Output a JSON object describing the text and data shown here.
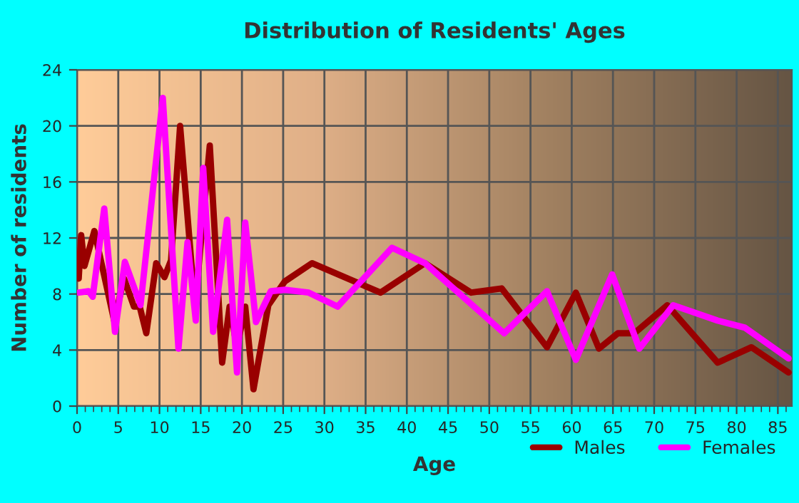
{
  "chart_data": {
    "type": "line",
    "title": "Distribution of Residents' Ages",
    "xlabel": "Age",
    "ylabel": "Number of residents",
    "xlim": [
      0,
      86.7
    ],
    "xticks": [
      0,
      5,
      10,
      15,
      20,
      25,
      30,
      35,
      40,
      45,
      50,
      55,
      60,
      65,
      70,
      75,
      80,
      85
    ],
    "ylim": [
      0,
      24
    ],
    "yticks": [
      0,
      4,
      8,
      12,
      16,
      20,
      24
    ],
    "grid": true,
    "legend": "bottom right",
    "line_style": "solid",
    "series": [
      {
        "name": "Males",
        "color": "#990000",
        "x": [
          0.2,
          0.5,
          0.9,
          2.1,
          4.5,
          5.7,
          6.9,
          7.6,
          8.4,
          9.6,
          10.6,
          11.4,
          12.5,
          14.3,
          16.1,
          17.6,
          18.5,
          19.4,
          20.4,
          21.4,
          23.2,
          25.2,
          28.5,
          36.8,
          42.2,
          47.8,
          51.5,
          57,
          60.5,
          63.3,
          65.6,
          67.6,
          71.6,
          77.7,
          81.8,
          86.3
        ],
        "values": [
          9.1,
          12.2,
          10,
          12.5,
          6.1,
          9.1,
          7.1,
          7.1,
          5.2,
          10.2,
          9.2,
          10.4,
          20,
          7.1,
          18.6,
          3.1,
          7.1,
          4.2,
          7.1,
          1.2,
          7.2,
          8.9,
          10.2,
          8.1,
          10.2,
          8.1,
          8.4,
          4.2,
          8.1,
          4.1,
          5.2,
          5.2,
          7.2,
          3.1,
          4.2,
          2.4
        ]
      },
      {
        "name": "Females",
        "color": "#ff00ff",
        "x": [
          0.2,
          1.4,
          1.9,
          3.3,
          4.6,
          5.8,
          7.7,
          10.4,
          12.3,
          13.4,
          14.4,
          15.3,
          16.5,
          18.2,
          19.4,
          20.4,
          21.7,
          23.5,
          25.2,
          28.1,
          31.6,
          38.2,
          42.2,
          51.8,
          57,
          60.5,
          64.9,
          68.2,
          72.3,
          77.7,
          81,
          86.3
        ],
        "values": [
          8.1,
          8.2,
          7.8,
          14.1,
          5.3,
          10.3,
          7.2,
          22,
          4.1,
          11.7,
          6.1,
          17,
          5.3,
          13.3,
          2.4,
          13.1,
          6,
          8.2,
          8.3,
          8.1,
          7.1,
          11.3,
          10.2,
          5.2,
          8.2,
          3.3,
          9.4,
          4.1,
          7.2,
          6.1,
          5.6,
          3.4
        ]
      }
    ]
  }
}
